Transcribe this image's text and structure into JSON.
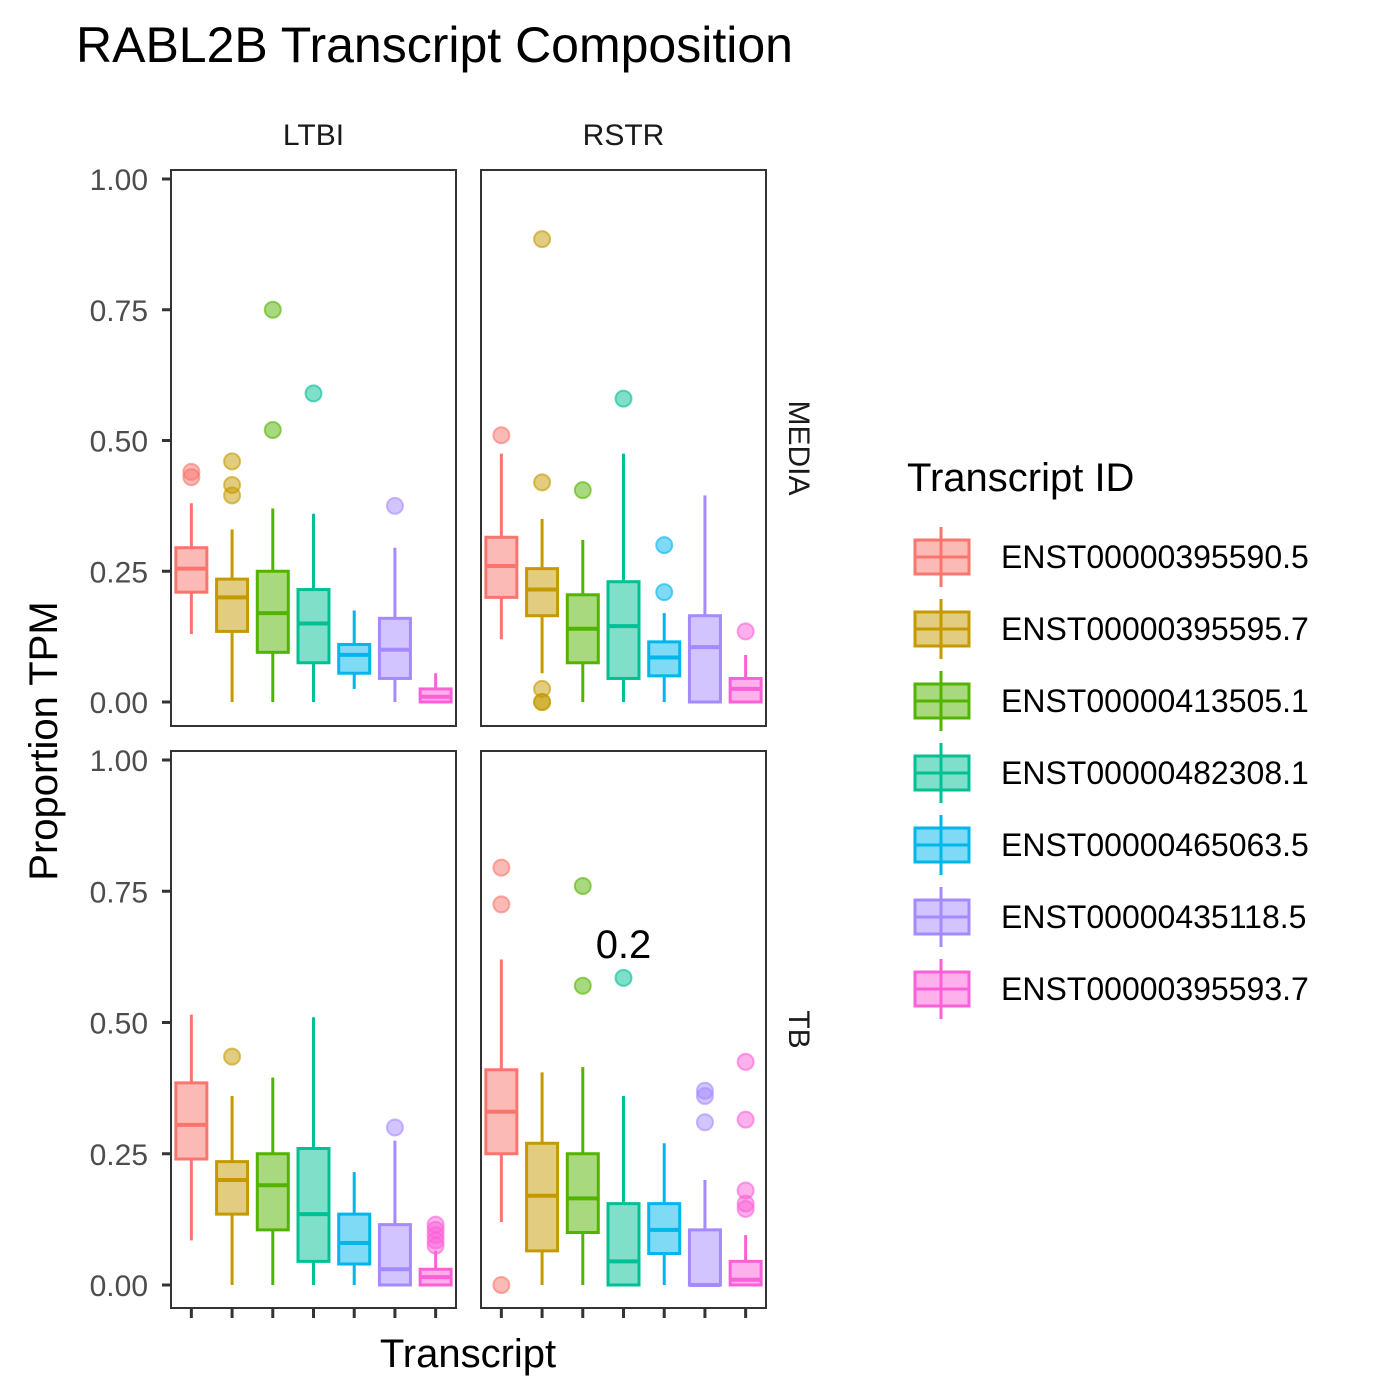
{
  "chart_data": {
    "type": "boxplot",
    "title": "RABL2B Transcript Composition",
    "xlabel": "Transcript",
    "ylabel": "Proportion TPM",
    "ylim": [
      0,
      1
    ],
    "y_ticks": [
      "0.00",
      "0.25",
      "0.50",
      "0.75",
      "1.00"
    ],
    "column_facets": [
      "LTBI",
      "RSTR"
    ],
    "row_facets": [
      "MEDIA",
      "TB"
    ],
    "legend": {
      "title": "Transcript ID",
      "position": "right",
      "items": [
        {
          "label": "ENST00000395590.5",
          "color": "#F8766D"
        },
        {
          "label": "ENST00000395595.7",
          "color": "#C49A00"
        },
        {
          "label": "ENST00000413505.1",
          "color": "#53B400"
        },
        {
          "label": "ENST00000482308.1",
          "color": "#00C094"
        },
        {
          "label": "ENST00000465063.5",
          "color": "#00B6EB"
        },
        {
          "label": "ENST00000435118.5",
          "color": "#A58AFF"
        },
        {
          "label": "ENST00000395593.7",
          "color": "#FB61D7"
        }
      ]
    },
    "grid": false,
    "panels": [
      {
        "row": "MEDIA",
        "col": "LTBI",
        "annotation": "",
        "boxes": [
          {
            "lo": 0.13,
            "q1": 0.21,
            "med": 0.255,
            "q3": 0.295,
            "hi": 0.38,
            "outliers": [
              0.43,
              0.44
            ]
          },
          {
            "lo": 0.0,
            "q1": 0.135,
            "med": 0.2,
            "q3": 0.235,
            "hi": 0.33,
            "outliers": [
              0.395,
              0.415,
              0.46
            ]
          },
          {
            "lo": 0.0,
            "q1": 0.095,
            "med": 0.17,
            "q3": 0.25,
            "hi": 0.37,
            "outliers": [
              0.52,
              0.75
            ]
          },
          {
            "lo": 0.0,
            "q1": 0.075,
            "med": 0.15,
            "q3": 0.215,
            "hi": 0.36,
            "outliers": [
              0.59
            ]
          },
          {
            "lo": 0.025,
            "q1": 0.055,
            "med": 0.09,
            "q3": 0.11,
            "hi": 0.175,
            "outliers": []
          },
          {
            "lo": 0.0,
            "q1": 0.045,
            "med": 0.1,
            "q3": 0.16,
            "hi": 0.295,
            "outliers": [
              0.375
            ]
          },
          {
            "lo": 0.0,
            "q1": 0.0,
            "med": 0.01,
            "q3": 0.025,
            "hi": 0.055,
            "outliers": []
          }
        ]
      },
      {
        "row": "MEDIA",
        "col": "RSTR",
        "annotation": "",
        "boxes": [
          {
            "lo": 0.12,
            "q1": 0.2,
            "med": 0.26,
            "q3": 0.315,
            "hi": 0.475,
            "outliers": [
              0.51
            ]
          },
          {
            "lo": 0.055,
            "q1": 0.165,
            "med": 0.215,
            "q3": 0.255,
            "hi": 0.35,
            "outliers": [
              0.0,
              0.0,
              0.025,
              0.42,
              0.885
            ]
          },
          {
            "lo": 0.0,
            "q1": 0.075,
            "med": 0.14,
            "q3": 0.205,
            "hi": 0.31,
            "outliers": [
              0.405
            ]
          },
          {
            "lo": 0.0,
            "q1": 0.045,
            "med": 0.145,
            "q3": 0.23,
            "hi": 0.475,
            "outliers": [
              0.58
            ]
          },
          {
            "lo": 0.0,
            "q1": 0.05,
            "med": 0.085,
            "q3": 0.115,
            "hi": 0.17,
            "outliers": [
              0.21,
              0.3
            ]
          },
          {
            "lo": 0.0,
            "q1": 0.0,
            "med": 0.105,
            "q3": 0.165,
            "hi": 0.395,
            "outliers": []
          },
          {
            "lo": 0.0,
            "q1": 0.0,
            "med": 0.025,
            "q3": 0.045,
            "hi": 0.09,
            "outliers": [
              0.135
            ]
          }
        ]
      },
      {
        "row": "TB",
        "col": "LTBI",
        "annotation": "",
        "boxes": [
          {
            "lo": 0.085,
            "q1": 0.24,
            "med": 0.305,
            "q3": 0.385,
            "hi": 0.515,
            "outliers": []
          },
          {
            "lo": 0.0,
            "q1": 0.135,
            "med": 0.2,
            "q3": 0.235,
            "hi": 0.36,
            "outliers": [
              0.435
            ]
          },
          {
            "lo": 0.0,
            "q1": 0.105,
            "med": 0.19,
            "q3": 0.25,
            "hi": 0.395,
            "outliers": []
          },
          {
            "lo": 0.0,
            "q1": 0.045,
            "med": 0.135,
            "q3": 0.26,
            "hi": 0.51,
            "outliers": []
          },
          {
            "lo": 0.0,
            "q1": 0.04,
            "med": 0.08,
            "q3": 0.135,
            "hi": 0.215,
            "outliers": []
          },
          {
            "lo": 0.0,
            "q1": 0.0,
            "med": 0.03,
            "q3": 0.115,
            "hi": 0.275,
            "outliers": [
              0.3
            ]
          },
          {
            "lo": 0.0,
            "q1": 0.0,
            "med": 0.015,
            "q3": 0.03,
            "hi": 0.065,
            "outliers": [
              0.075,
              0.085,
              0.095,
              0.105,
              0.115
            ]
          }
        ]
      },
      {
        "row": "TB",
        "col": "RSTR",
        "annotation": "0.2",
        "boxes": [
          {
            "lo": 0.12,
            "q1": 0.25,
            "med": 0.33,
            "q3": 0.41,
            "hi": 0.62,
            "outliers": [
              0.0,
              0.725,
              0.795
            ]
          },
          {
            "lo": 0.0,
            "q1": 0.065,
            "med": 0.17,
            "q3": 0.27,
            "hi": 0.405,
            "outliers": []
          },
          {
            "lo": 0.0,
            "q1": 0.1,
            "med": 0.165,
            "q3": 0.25,
            "hi": 0.415,
            "outliers": [
              0.57,
              0.76
            ]
          },
          {
            "lo": 0.0,
            "q1": 0.0,
            "med": 0.045,
            "q3": 0.155,
            "hi": 0.36,
            "outliers": [
              0.585
            ]
          },
          {
            "lo": 0.0,
            "q1": 0.06,
            "med": 0.105,
            "q3": 0.155,
            "hi": 0.27,
            "outliers": []
          },
          {
            "lo": 0.0,
            "q1": 0.0,
            "med": 0.0,
            "q3": 0.105,
            "hi": 0.2,
            "outliers": [
              0.31,
              0.36,
              0.37
            ]
          },
          {
            "lo": 0.0,
            "q1": 0.0,
            "med": 0.01,
            "q3": 0.045,
            "hi": 0.095,
            "outliers": [
              0.145,
              0.155,
              0.18,
              0.315,
              0.425
            ]
          }
        ]
      }
    ]
  }
}
